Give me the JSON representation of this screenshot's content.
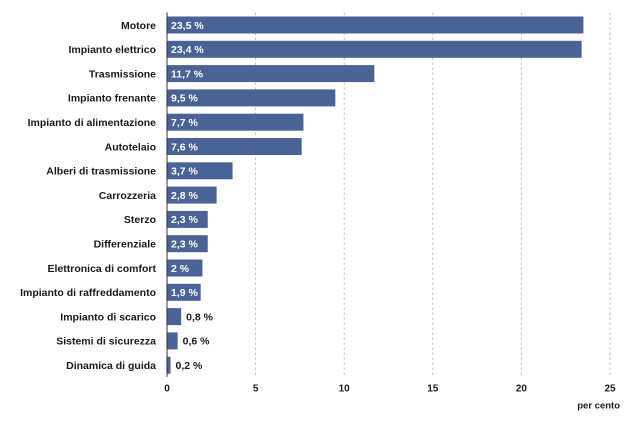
{
  "chart_data": {
    "type": "bar",
    "orientation": "horizontal",
    "categories": [
      "Motore",
      "Impianto elettrico",
      "Trasmissione",
      "Impianto frenante",
      "Impianto di alimentazione",
      "Autotelaio",
      "Alberi di trasmissione",
      "Carrozzeria",
      "Sterzo",
      "Differenziale",
      "Elettronica di comfort",
      "Impianto di raffreddamento",
      "Impianto di scarico",
      "Sistemi di sicurezza",
      "Dinamica di guida"
    ],
    "values": [
      23.5,
      23.4,
      11.7,
      9.5,
      7.7,
      7.6,
      3.7,
      2.8,
      2.3,
      2.3,
      2,
      1.9,
      0.8,
      0.6,
      0.2
    ],
    "value_labels": [
      "23,5 %",
      "23,4 %",
      "11,7 %",
      "9,5 %",
      "7,7 %",
      "7,6 %",
      "3,7 %",
      "2,8 %",
      "2,3 %",
      "2,3 %",
      "2 %",
      "1,9 %",
      "0,8 %",
      "0,6 %",
      "0,2 %"
    ],
    "xlim": [
      0,
      25
    ],
    "xticks": [
      0,
      5,
      10,
      15,
      20,
      25
    ],
    "xtick_labels": [
      "0",
      "5",
      "10",
      "15",
      "20",
      "25"
    ],
    "xlabel": "per cento",
    "grid": "vertical-dashed",
    "bar_color": "#4a6295",
    "label_color_inside": "#ffffff",
    "label_color_outside": "#1a1a1a"
  }
}
